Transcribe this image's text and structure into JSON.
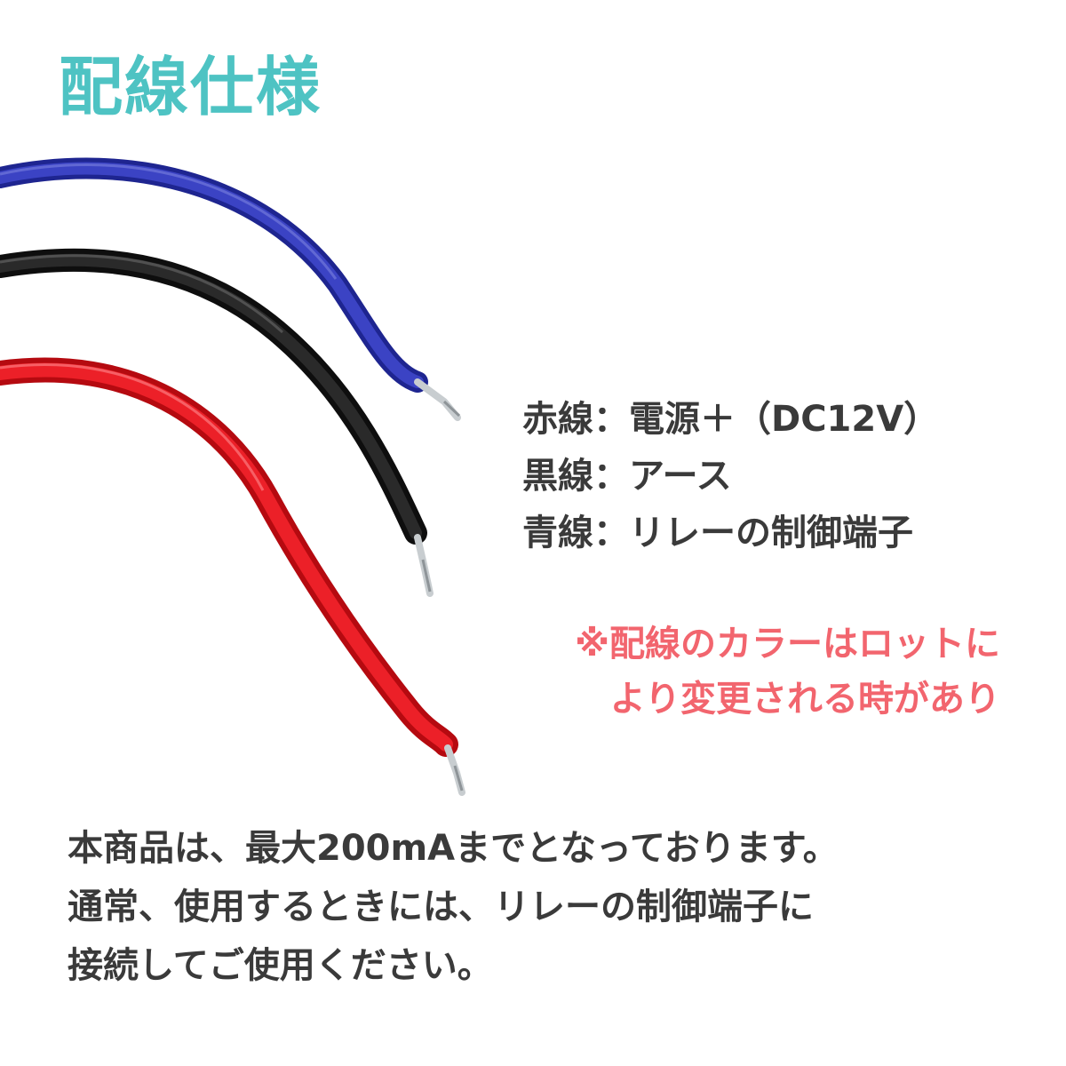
{
  "title": "配線仕様",
  "wires": [
    {
      "name": "blue-wire",
      "color": "#2a31a8",
      "tip_color": "#cfd5d8"
    },
    {
      "name": "black-wire",
      "color": "#1c1c1c",
      "tip_color": "#cfd5d8"
    },
    {
      "name": "red-wire",
      "color": "#e1121a",
      "tip_color": "#cfd5d8"
    }
  ],
  "spec_list": [
    "赤線：電源＋（DC12V）",
    "黒線：アース",
    "青線：リレーの制御端子"
  ],
  "note": [
    "※配線のカラーはロットに",
    "より変更される時があり"
  ],
  "description": [
    "本商品は、最大200mAまでとなっております。",
    "通常、使用するときには、リレーの制御端子に",
    "接続してご使用ください。"
  ],
  "colors": {
    "title": "#4ec3c3",
    "text": "#3a3a3a",
    "note": "#f2656e"
  }
}
